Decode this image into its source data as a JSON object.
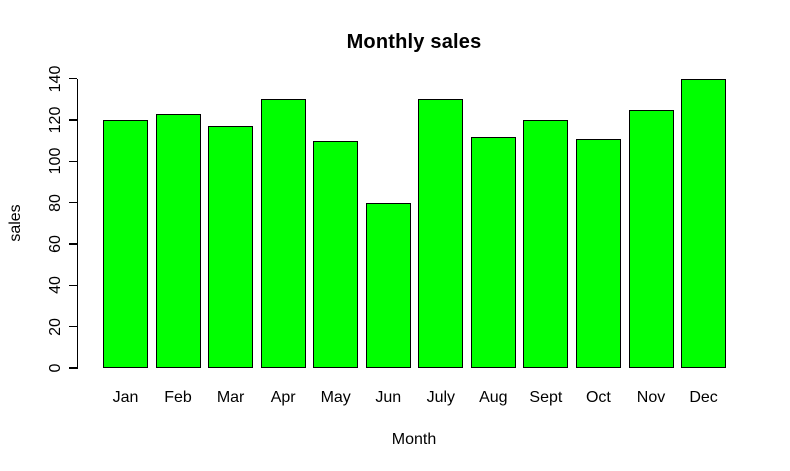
{
  "chart_data": {
    "type": "bar",
    "title": "Monthly sales",
    "xlabel": "Month",
    "ylabel": "sales",
    "categories": [
      "Jan",
      "Feb",
      "Mar",
      "Apr",
      "May",
      "Jun",
      "July",
      "Aug",
      "Sept",
      "Oct",
      "Nov",
      "Dec"
    ],
    "values": [
      120,
      123,
      117,
      130,
      110,
      80,
      130,
      112,
      120,
      111,
      125,
      140
    ],
    "ylim": [
      0,
      140
    ],
    "yticks": [
      0,
      20,
      40,
      60,
      80,
      100,
      120,
      140
    ],
    "grid": false,
    "legend": "none",
    "colors": {
      "bar_fill": "#00ff00",
      "bar_border": "#000000",
      "axis": "#000000",
      "text": "#000000",
      "background": "#ffffff"
    }
  }
}
